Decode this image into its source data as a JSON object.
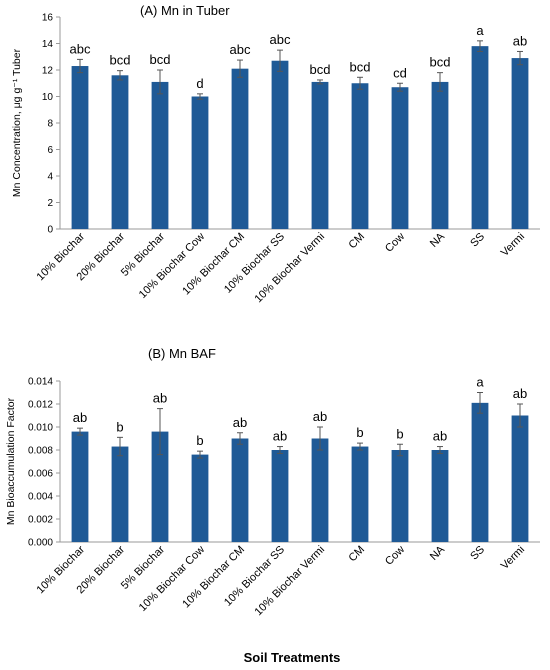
{
  "figure": {
    "xlabel": "Soil Treatments"
  },
  "chart_data": [
    {
      "type": "bar",
      "title": "(A) Mn in Tuber",
      "ylabel": "Mn Concentration, μg g⁻¹ Tuber",
      "ylim": [
        0,
        16
      ],
      "yticks": [
        0,
        2,
        4,
        6,
        8,
        10,
        12,
        14,
        16
      ],
      "ytick_decimals": 0,
      "color": "#1f5a96",
      "categories": [
        "10% Biochar",
        "20% Biochar",
        "5% Biochar",
        "10% Biochar Cow",
        "10% Biochar CM",
        "10% Biochar SS",
        "10% Biochar Vermi",
        "CM",
        "Cow",
        "NA",
        "SS",
        "Vermi"
      ],
      "values": [
        12.3,
        11.6,
        11.1,
        10.0,
        12.1,
        12.7,
        11.1,
        11.0,
        10.7,
        11.1,
        13.8,
        12.9
      ],
      "errors": [
        0.5,
        0.35,
        0.9,
        0.2,
        0.65,
        0.8,
        0.15,
        0.45,
        0.3,
        0.7,
        0.4,
        0.5
      ],
      "labels": [
        "abc",
        "bcd",
        "bcd",
        "d",
        "abc",
        "abc",
        "bcd",
        "bcd",
        "cd",
        "bcd",
        "a",
        "ab"
      ]
    },
    {
      "type": "bar",
      "title": "(B) Mn BAF",
      "ylabel": "Mn Bioaccumulation Factor",
      "ylim": [
        0,
        0.014
      ],
      "yticks": [
        0,
        0.002,
        0.004,
        0.006,
        0.008,
        0.01,
        0.012,
        0.014
      ],
      "ytick_decimals": 3,
      "color": "#1f5a96",
      "categories": [
        "10% Biochar",
        "20% Biochar",
        "5% Biochar",
        "10% Biochar Cow",
        "10% Biochar CM",
        "10% Biochar SS",
        "10% Biochar Vermi",
        "CM",
        "Cow",
        "NA",
        "SS",
        "Vermi"
      ],
      "values": [
        0.0096,
        0.0083,
        0.0096,
        0.0076,
        0.009,
        0.008,
        0.009,
        0.0083,
        0.008,
        0.008,
        0.0121,
        0.011
      ],
      "errors": [
        0.0003,
        0.0008,
        0.002,
        0.0003,
        0.0005,
        0.0003,
        0.001,
        0.0003,
        0.0005,
        0.0003,
        0.0009,
        0.001
      ],
      "labels": [
        "ab",
        "b",
        "ab",
        "b",
        "ab",
        "ab",
        "ab",
        "b",
        "b",
        "ab",
        "a",
        "ab"
      ]
    }
  ]
}
